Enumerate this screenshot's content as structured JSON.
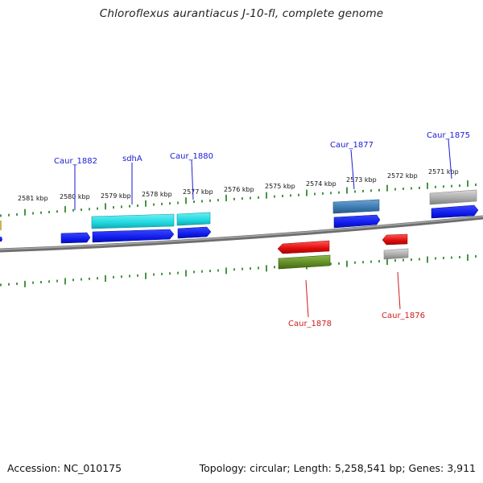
{
  "title": "Chloroflexus aurantiacus J-10-fl, complete genome",
  "footer": {
    "accession": "Accession: NC_010175",
    "topology": "Topology: circular; Length: 5,258,541 bp; Genes: 3,911"
  },
  "scale_labels": [
    "2581 kbp",
    "2580 kbp",
    "2579 kbp",
    "2578 kbp",
    "2577 kbp",
    "2576 kbp",
    "2575 kbp",
    "2574 kbp",
    "2573 kbp",
    "2572 kbp",
    "2571 kbp"
  ],
  "gene_labels": {
    "caur_1882": "Caur_1882",
    "sdhA": "sdhA",
    "caur_1880": "Caur_1880",
    "caur_1877": "Caur_1877",
    "caur_1875": "Caur_1875",
    "caur_1878": "Caur_1878",
    "caur_1876": "Caur_1876"
  },
  "colors": {
    "forward_label": "#1a1ad6",
    "reverse_label": "#d11a1a",
    "tick": "#1a7a1a",
    "backbone": "#7a7a7a",
    "blue_cds": "#0b17e6",
    "cyan_feature": "#1fd6de",
    "steel_feature": "#3a78b0",
    "gray_feature": "#a8a8a8",
    "red_cds": "#e00b0b",
    "olive_feature": "#5f8a23"
  }
}
